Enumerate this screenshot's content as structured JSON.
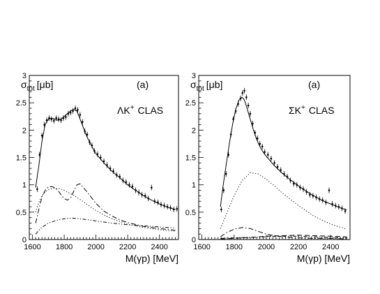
{
  "chart_data": [
    {
      "type": "line",
      "panel_label": "(a)",
      "ylabel_main": "σ",
      "ylabel_sub": "tot",
      "ylabel_unit": "[μb]",
      "xlabel": "M(γp) [MeV]",
      "annotation_main": "ΛK",
      "annotation_sup": "+",
      "annotation_rest": "CLAS",
      "xlim": [
        1580,
        2520
      ],
      "ylim": [
        0,
        3
      ],
      "x_ticks": [
        1600,
        1800,
        2000,
        2200,
        2400
      ],
      "y_ticks": [
        0,
        0.5,
        1,
        1.5,
        2,
        2.5,
        3
      ],
      "y_tick_labels": [
        "0",
        "0.5",
        "1",
        "1.5",
        "2",
        "2.5",
        "3"
      ],
      "series": [
        {
          "style": "solid",
          "x": [
            1620,
            1640,
            1660,
            1680,
            1700,
            1720,
            1740,
            1760,
            1780,
            1800,
            1820,
            1840,
            1860,
            1880,
            1900,
            1920,
            1940,
            1960,
            1980,
            2000,
            2050,
            2100,
            2150,
            2200,
            2250,
            2300,
            2350,
            2400,
            2450,
            2500
          ],
          "y": [
            0.95,
            1.35,
            1.8,
            2.1,
            2.2,
            2.22,
            2.2,
            2.18,
            2.2,
            2.25,
            2.3,
            2.35,
            2.38,
            2.35,
            2.2,
            2.05,
            1.9,
            1.78,
            1.67,
            1.57,
            1.4,
            1.25,
            1.13,
            1.0,
            0.9,
            0.8,
            0.72,
            0.65,
            0.59,
            0.55
          ]
        },
        {
          "style": "dashdot",
          "x": [
            1620,
            1640,
            1660,
            1680,
            1700,
            1720,
            1740,
            1760,
            1780,
            1800,
            1820,
            1840,
            1860,
            1880,
            1900,
            1950,
            2000,
            2050,
            2100,
            2150,
            2200,
            2300,
            2400,
            2500
          ],
          "y": [
            0.3,
            0.55,
            0.78,
            0.9,
            0.96,
            0.97,
            0.95,
            0.9,
            0.82,
            0.75,
            0.72,
            0.76,
            0.88,
            1.0,
            1.02,
            0.85,
            0.66,
            0.52,
            0.43,
            0.36,
            0.31,
            0.24,
            0.2,
            0.17
          ]
        },
        {
          "style": "dotted",
          "x": [
            1620,
            1640,
            1660,
            1680,
            1700,
            1720,
            1740,
            1760,
            1780,
            1800,
            1820,
            1840,
            1860,
            1880,
            1900,
            1950,
            2000,
            2050,
            2100,
            2150,
            2200,
            2300,
            2400,
            2500
          ],
          "y": [
            0.5,
            0.68,
            0.8,
            0.87,
            0.91,
            0.93,
            0.94,
            0.93,
            0.92,
            0.9,
            0.87,
            0.84,
            0.81,
            0.77,
            0.73,
            0.63,
            0.53,
            0.45,
            0.38,
            0.33,
            0.28,
            0.22,
            0.18,
            0.15
          ]
        },
        {
          "style": "dashdotdot",
          "x": [
            1620,
            1650,
            1700,
            1750,
            1800,
            1850,
            1900,
            1950,
            2000,
            2100,
            2200,
            2300,
            2400,
            2500
          ],
          "y": [
            0.1,
            0.2,
            0.3,
            0.35,
            0.38,
            0.39,
            0.38,
            0.36,
            0.34,
            0.3,
            0.27,
            0.25,
            0.23,
            0.21
          ]
        }
      ],
      "data_points": {
        "x": [
          1630,
          1645,
          1660,
          1675,
          1690,
          1705,
          1720,
          1735,
          1750,
          1765,
          1780,
          1795,
          1810,
          1825,
          1840,
          1855,
          1870,
          1885,
          1900,
          1915,
          1930,
          1945,
          1960,
          1975,
          1990,
          2010,
          2030,
          2050,
          2070,
          2090,
          2110,
          2130,
          2150,
          2170,
          2190,
          2210,
          2230,
          2250,
          2270,
          2290,
          2310,
          2330,
          2350,
          2370,
          2390,
          2410,
          2430,
          2450,
          2470,
          2490,
          2510
        ],
        "y": [
          0.92,
          1.55,
          1.9,
          2.1,
          2.18,
          2.22,
          2.2,
          2.17,
          2.22,
          2.2,
          2.18,
          2.22,
          2.24,
          2.3,
          2.32,
          2.35,
          2.4,
          2.37,
          2.28,
          2.15,
          1.98,
          1.92,
          1.78,
          1.72,
          1.62,
          1.56,
          1.5,
          1.43,
          1.36,
          1.3,
          1.25,
          1.18,
          1.15,
          1.08,
          1.05,
          1.0,
          0.97,
          0.9,
          0.86,
          0.82,
          0.8,
          0.75,
          0.95,
          0.7,
          0.68,
          0.64,
          0.62,
          0.6,
          0.58,
          0.55,
          0.56
        ]
      }
    },
    {
      "type": "line",
      "panel_label": "(a)",
      "ylabel_main": "σ",
      "ylabel_sub": "tot",
      "ylabel_unit": "[μb]",
      "xlabel": "M(γp) [MeV]",
      "annotation_main": "ΣK",
      "annotation_sup": "+",
      "annotation_rest": "CLAS",
      "xlim": [
        1580,
        2520
      ],
      "ylim": [
        0,
        3
      ],
      "x_ticks": [
        1600,
        1800,
        2000,
        2200,
        2400
      ],
      "y_ticks": [
        0,
        0.5,
        1,
        1.5,
        2,
        2.5,
        3
      ],
      "y_tick_labels": [
        "0",
        "0.5",
        "1",
        "1.5",
        "2",
        "2.5",
        "3"
      ],
      "series": [
        {
          "style": "solid",
          "x": [
            1715,
            1730,
            1750,
            1770,
            1790,
            1810,
            1830,
            1850,
            1860,
            1870,
            1880,
            1900,
            1920,
            1940,
            1960,
            1980,
            2000,
            2050,
            2100,
            2150,
            2200,
            2250,
            2300,
            2350,
            2400,
            2450,
            2500
          ],
          "y": [
            0.6,
            0.95,
            1.35,
            1.75,
            2.1,
            2.38,
            2.55,
            2.6,
            2.57,
            2.5,
            2.4,
            2.2,
            2.0,
            1.83,
            1.7,
            1.6,
            1.52,
            1.35,
            1.21,
            1.09,
            0.98,
            0.88,
            0.79,
            0.71,
            0.65,
            0.59,
            0.54
          ]
        },
        {
          "style": "dotted",
          "x": [
            1715,
            1750,
            1800,
            1850,
            1900,
            1950,
            2000,
            2050,
            2100,
            2200,
            2300,
            2400,
            2500
          ],
          "y": [
            0.2,
            0.45,
            0.8,
            1.08,
            1.22,
            1.2,
            1.1,
            0.98,
            0.85,
            0.62,
            0.42,
            0.28,
            0.19
          ]
        },
        {
          "style": "dashdot",
          "x": [
            1715,
            1750,
            1800,
            1850,
            1900,
            1950,
            2000,
            2050,
            2100,
            2200,
            2300,
            2400,
            2500
          ],
          "y": [
            0.05,
            0.12,
            0.19,
            0.22,
            0.2,
            0.15,
            0.1,
            0.07,
            0.05,
            0.03,
            0.02,
            0.02,
            0.01
          ]
        },
        {
          "style": "dashed",
          "x": [
            1715,
            1800,
            1900,
            2000,
            2100,
            2200,
            2300,
            2400,
            2500
          ],
          "y": [
            0.01,
            0.02,
            0.04,
            0.06,
            0.07,
            0.08,
            0.07,
            0.06,
            0.05
          ]
        },
        {
          "style": "dashdotdot",
          "x": [
            1715,
            1800,
            1900,
            2000,
            2100,
            2200,
            2300,
            2400,
            2500
          ],
          "y": [
            0.02,
            0.03,
            0.04,
            0.05,
            0.06,
            0.06,
            0.05,
            0.04,
            0.03
          ]
        }
      ],
      "data_points": {
        "x": [
          1720,
          1735,
          1750,
          1765,
          1780,
          1795,
          1810,
          1825,
          1840,
          1852,
          1864,
          1876,
          1888,
          1900,
          1915,
          1930,
          1945,
          1960,
          1975,
          1990,
          2010,
          2030,
          2050,
          2070,
          2090,
          2110,
          2130,
          2150,
          2170,
          2190,
          2210,
          2230,
          2250,
          2270,
          2290,
          2310,
          2330,
          2350,
          2370,
          2390,
          2410,
          2430,
          2450,
          2470,
          2490
        ],
        "y": [
          0.55,
          0.9,
          1.2,
          1.55,
          1.92,
          2.2,
          2.35,
          2.48,
          2.58,
          2.68,
          2.72,
          2.6,
          2.45,
          2.3,
          2.12,
          1.95,
          1.85,
          1.75,
          1.7,
          1.6,
          1.55,
          1.48,
          1.4,
          1.33,
          1.27,
          1.2,
          1.15,
          1.08,
          1.02,
          1.0,
          0.95,
          0.92,
          0.87,
          0.82,
          0.8,
          0.77,
          0.74,
          0.72,
          0.68,
          0.9,
          0.65,
          0.62,
          0.6,
          0.57,
          0.52
        ]
      }
    }
  ]
}
